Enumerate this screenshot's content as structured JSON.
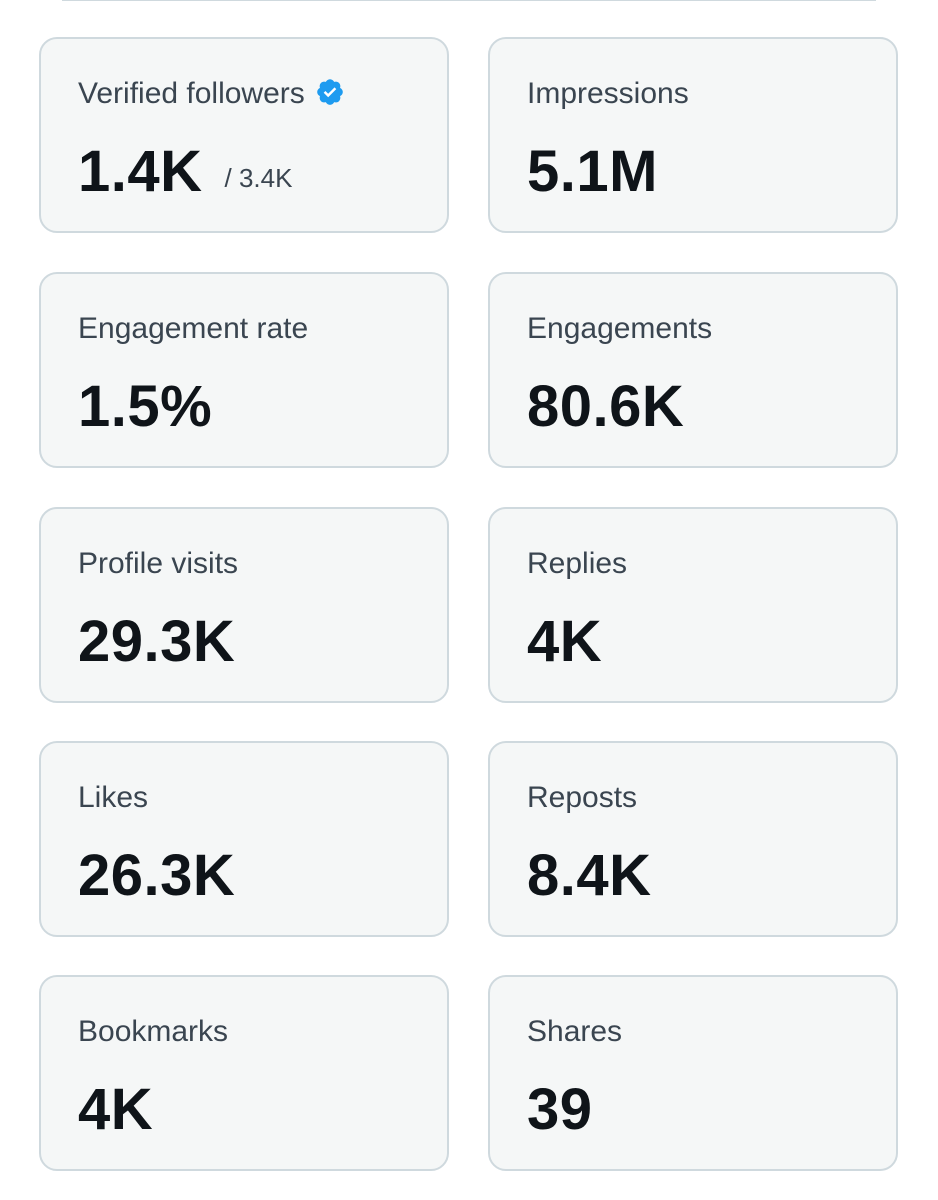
{
  "accent_color": "#1d9bf0",
  "verified_followers": {
    "label": "Verified followers",
    "icon": "verified-badge-icon",
    "value": "1.4K",
    "total": "/ 3.4K"
  },
  "metrics": [
    {
      "label": "Impressions",
      "value": "5.1M"
    },
    {
      "label": "Engagement rate",
      "value": "1.5%"
    },
    {
      "label": "Engagements",
      "value": "80.6K"
    },
    {
      "label": "Profile visits",
      "value": "29.3K"
    },
    {
      "label": "Replies",
      "value": "4K"
    },
    {
      "label": "Likes",
      "value": "26.3K"
    },
    {
      "label": "Reposts",
      "value": "8.4K"
    },
    {
      "label": "Bookmarks",
      "value": "4K"
    },
    {
      "label": "Shares",
      "value": "39"
    }
  ]
}
